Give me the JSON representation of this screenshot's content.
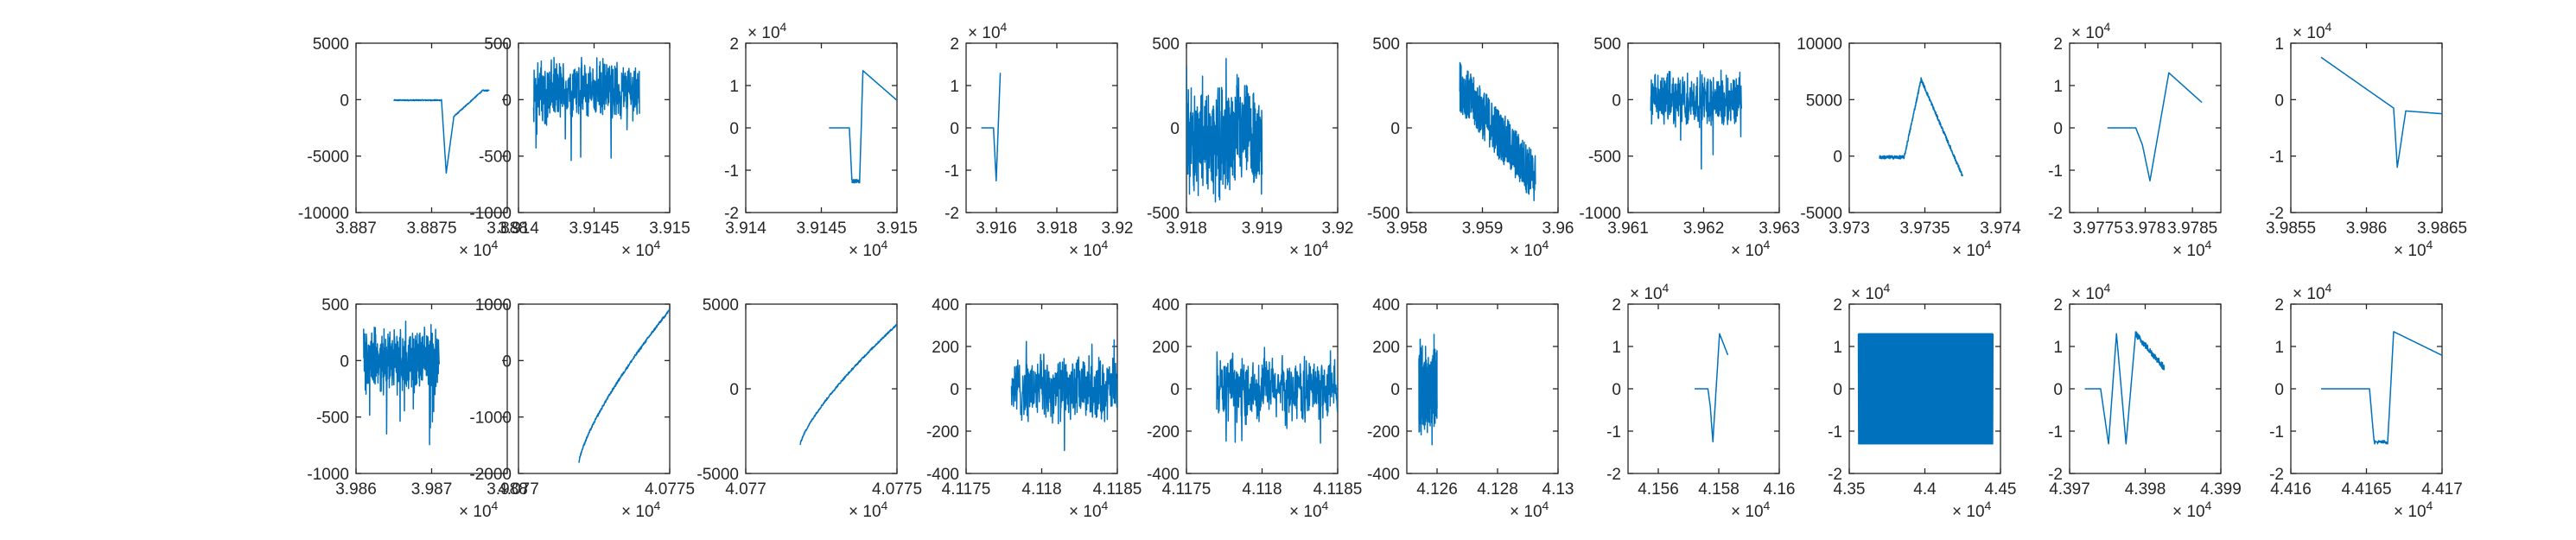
{
  "figure": {
    "background": "#ffffff",
    "line_color": "#0072BD",
    "axis_color": "#262626",
    "rows": 2,
    "cols": 10
  },
  "chart_data": [
    {
      "type": "line",
      "xlim": [
        38870,
        38880
      ],
      "ylim": [
        -10000,
        5000
      ],
      "xticks": [
        38870,
        38875,
        38880
      ],
      "xtick_labels": [
        "3.887",
        "3.8875",
        "3.888"
      ],
      "x_exponent": "× 10^4",
      "yticks": [
        -10000,
        -5000,
        0,
        5000
      ],
      "ytick_labels": [
        "-10000",
        "-5000",
        "0",
        "5000"
      ],
      "y_exponent": "",
      "series": [
        {
          "shape": "dip_spike",
          "x_range": [
            38872.5,
            38878.8
          ],
          "y_range": [
            -6500,
            800
          ],
          "event_x": 0.55
        }
      ]
    },
    {
      "type": "line",
      "xlim": [
        39140,
        39150
      ],
      "ylim": [
        -1000,
        500
      ],
      "xticks": [
        39140,
        39145,
        39150
      ],
      "xtick_labels": [
        "3.914",
        "3.9145",
        "3.915"
      ],
      "x_exponent": "× 10^4",
      "yticks": [
        -1000,
        -500,
        0,
        500
      ],
      "ytick_labels": [
        "-1000",
        "-500",
        "0",
        "500"
      ],
      "y_exponent": "",
      "series": [
        {
          "shape": "noise",
          "x_range": [
            39141,
            39148
          ],
          "y_range": [
            -550,
            350
          ],
          "center": 80,
          "amp": 200
        }
      ]
    },
    {
      "type": "line",
      "xlim": [
        39140,
        39150
      ],
      "ylim": [
        -20000,
        20000
      ],
      "xticks": [
        39140,
        39145,
        39150
      ],
      "xtick_labels": [
        "3.914",
        "3.9145",
        "3.915"
      ],
      "x_exponent": "× 10^4",
      "yticks": [
        -20000,
        -10000,
        0,
        10000,
        20000
      ],
      "ytick_labels": [
        "-2",
        "-1",
        "0",
        "1",
        "2"
      ],
      "y_exponent": "× 10^4",
      "series": [
        {
          "shape": "square_pulse",
          "x_range": [
            39145.5,
            39150
          ],
          "y_range": [
            -13000,
            13500
          ],
          "event_x": 0.3
        }
      ]
    },
    {
      "type": "line",
      "xlim": [
        39150,
        39200
      ],
      "ylim": [
        -20000,
        20000
      ],
      "xticks": [
        39160,
        39180,
        39200
      ],
      "xtick_labels": [
        "3.916",
        "3.918",
        "3.92"
      ],
      "x_exponent": "× 10^4",
      "yticks": [
        -20000,
        -10000,
        0,
        10000,
        20000
      ],
      "ytick_labels": [
        "-2",
        "-1",
        "0",
        "1",
        "2"
      ],
      "y_exponent": "× 10^4",
      "series": [
        {
          "shape": "narrow_swing",
          "x_range": [
            39155,
            39164
          ],
          "y_range": [
            -12500,
            13000
          ],
          "event_x": 0.55
        }
      ]
    },
    {
      "type": "line",
      "xlim": [
        39180,
        39200
      ],
      "ylim": [
        -500,
        500
      ],
      "xticks": [
        39180,
        39190,
        39200
      ],
      "xtick_labels": [
        "3.918",
        "3.919",
        "3.92"
      ],
      "x_exponent": "× 10^4",
      "yticks": [
        -500,
        0,
        500
      ],
      "ytick_labels": [
        "-500",
        "0",
        "500"
      ],
      "y_exponent": "",
      "series": [
        {
          "shape": "noise",
          "x_range": [
            39180,
            39190
          ],
          "y_range": [
            -480,
            420
          ],
          "center": -60,
          "amp": 220
        }
      ]
    },
    {
      "type": "line",
      "xlim": [
        39580,
        39600
      ],
      "ylim": [
        -500,
        500
      ],
      "xticks": [
        39580,
        39590,
        39600
      ],
      "xtick_labels": [
        "3.958",
        "3.959",
        "3.96"
      ],
      "x_exponent": "× 10^4",
      "yticks": [
        -500,
        0,
        500
      ],
      "ytick_labels": [
        "-500",
        "0",
        "500"
      ],
      "y_exponent": "",
      "series": [
        {
          "shape": "noisy_descent",
          "x_range": [
            39587,
            39597
          ],
          "y_range": [
            -500,
            480
          ],
          "start": 250,
          "end": -300,
          "amp": 150
        }
      ]
    },
    {
      "type": "line",
      "xlim": [
        39610,
        39630
      ],
      "ylim": [
        -1000,
        500
      ],
      "xticks": [
        39610,
        39620,
        39630
      ],
      "xtick_labels": [
        "3.961",
        "3.962",
        "3.963"
      ],
      "x_exponent": "× 10^4",
      "yticks": [
        -1000,
        -500,
        0,
        500
      ],
      "ytick_labels": [
        "-1000",
        "-500",
        "0",
        "500"
      ],
      "y_exponent": "",
      "series": [
        {
          "shape": "noise",
          "x_range": [
            39613,
            39625
          ],
          "y_range": [
            -650,
            280
          ],
          "center": 0,
          "amp": 170
        }
      ]
    },
    {
      "type": "line",
      "xlim": [
        39730,
        39740
      ],
      "ylim": [
        -5000,
        10000
      ],
      "xticks": [
        39730,
        39735,
        39740
      ],
      "xtick_labels": [
        "3.973",
        "3.9735",
        "3.974"
      ],
      "x_exponent": "× 10^4",
      "yticks": [
        -5000,
        0,
        5000,
        10000
      ],
      "ytick_labels": [
        "-5000",
        "0",
        "5000",
        "10000"
      ],
      "y_exponent": "",
      "series": [
        {
          "shape": "triangle_peak",
          "x_range": [
            39732,
            39737.5
          ],
          "y_range": [
            -1800,
            6800
          ],
          "event_x": 0.5
        }
      ]
    },
    {
      "type": "line",
      "xlim": [
        39772,
        39788
      ],
      "ylim": [
        -20000,
        20000
      ],
      "xticks": [
        39775,
        39780,
        39785
      ],
      "xtick_labels": [
        "3.9775",
        "3.978",
        "3.9785"
      ],
      "x_exponent": "× 10^4",
      "yticks": [
        -20000,
        -10000,
        0,
        10000,
        20000
      ],
      "ytick_labels": [
        "-2",
        "-1",
        "0",
        "1",
        "2"
      ],
      "y_exponent": "× 10^4",
      "series": [
        {
          "shape": "step_swing",
          "x_range": [
            39776,
            39786
          ],
          "y_range": [
            -12500,
            13000
          ],
          "event_x": 0.45
        }
      ]
    },
    {
      "type": "line",
      "xlim": [
        39855,
        39865
      ],
      "ylim": [
        -20000,
        10000
      ],
      "xticks": [
        39855,
        39860,
        39865
      ],
      "xtick_labels": [
        "3.9855",
        "3.986",
        "3.9865"
      ],
      "x_exponent": "× 10^4",
      "yticks": [
        -20000,
        -10000,
        0,
        10000
      ],
      "ytick_labels": [
        "-2",
        "-1",
        "0",
        "1"
      ],
      "y_exponent": "× 10^4",
      "series": [
        {
          "shape": "decay_dip",
          "x_range": [
            39857,
            39865
          ],
          "y_range": [
            -12000,
            7500
          ],
          "event_x": 0.6
        }
      ]
    },
    {
      "type": "line",
      "xlim": [
        39860,
        39880
      ],
      "ylim": [
        -1000,
        500
      ],
      "xticks": [
        39860,
        39870,
        39880
      ],
      "xtick_labels": [
        "3.986",
        "3.987",
        "3.988"
      ],
      "x_exponent": "× 10^4",
      "yticks": [
        -1000,
        -500,
        0,
        500
      ],
      "ytick_labels": [
        "-1000",
        "-500",
        "0",
        "500"
      ],
      "y_exponent": "",
      "series": [
        {
          "shape": "noise",
          "x_range": [
            39861,
            39871
          ],
          "y_range": [
            -820,
            400
          ],
          "center": 0,
          "amp": 200
        }
      ]
    },
    {
      "type": "line",
      "xlim": [
        40770,
        40775
      ],
      "ylim": [
        -2000,
        1000
      ],
      "xticks": [
        40770,
        40775
      ],
      "xtick_labels": [
        "4.077",
        "4.0775"
      ],
      "x_exponent": "× 10^4",
      "yticks": [
        -2000,
        -1000,
        0,
        1000
      ],
      "ytick_labels": [
        "-2000",
        "-1000",
        "0",
        "1000"
      ],
      "y_exponent": "",
      "series": [
        {
          "shape": "rising_curve",
          "x_range": [
            40772,
            40775
          ],
          "y_range": [
            -1800,
            900
          ]
        }
      ]
    },
    {
      "type": "line",
      "xlim": [
        40770,
        40775
      ],
      "ylim": [
        -5000,
        5000
      ],
      "xticks": [
        40770,
        40775
      ],
      "xtick_labels": [
        "4.077",
        "4.0775"
      ],
      "x_exponent": "× 10^4",
      "yticks": [
        -5000,
        0,
        5000
      ],
      "ytick_labels": [
        "-5000",
        "0",
        "5000"
      ],
      "y_exponent": "",
      "series": [
        {
          "shape": "rising_curve",
          "x_range": [
            40771.8,
            40775
          ],
          "y_range": [
            -3300,
            3800
          ]
        }
      ]
    },
    {
      "type": "line",
      "xlim": [
        41175,
        41185
      ],
      "ylim": [
        -400,
        400
      ],
      "xticks": [
        41175,
        41180,
        41185
      ],
      "xtick_labels": [
        "4.1175",
        "4.118",
        "4.1185"
      ],
      "x_exponent": "× 10^4",
      "yticks": [
        -400,
        -200,
        0,
        200,
        400
      ],
      "ytick_labels": [
        "-400",
        "-200",
        "0",
        "200",
        "400"
      ],
      "y_exponent": "",
      "series": [
        {
          "shape": "noise",
          "x_range": [
            41178,
            41185
          ],
          "y_range": [
            -320,
            240
          ],
          "center": 0,
          "amp": 110
        }
      ]
    },
    {
      "type": "line",
      "xlim": [
        41175,
        41185
      ],
      "ylim": [
        -400,
        400
      ],
      "xticks": [
        41175,
        41180,
        41185
      ],
      "xtick_labels": [
        "4.1175",
        "4.118",
        "4.1185"
      ],
      "x_exponent": "× 10^4",
      "yticks": [
        -400,
        -200,
        0,
        200,
        400
      ],
      "ytick_labels": [
        "-400",
        "-200",
        "0",
        "200",
        "400"
      ],
      "y_exponent": "",
      "series": [
        {
          "shape": "noise",
          "x_range": [
            41177,
            41185
          ],
          "y_range": [
            -320,
            230
          ],
          "center": 0,
          "amp": 110
        }
      ]
    },
    {
      "type": "line",
      "xlim": [
        41250,
        41300
      ],
      "ylim": [
        -400,
        400
      ],
      "xticks": [
        41260,
        41280,
        41300
      ],
      "xtick_labels": [
        "4.126",
        "4.128",
        "4.13"
      ],
      "x_exponent": "× 10^4",
      "yticks": [
        -400,
        -200,
        0,
        200,
        400
      ],
      "ytick_labels": [
        "-400",
        "-200",
        "0",
        "200",
        "400"
      ],
      "y_exponent": "",
      "series": [
        {
          "shape": "noise",
          "x_range": [
            41254,
            41260
          ],
          "y_range": [
            -280,
            280
          ],
          "center": 0,
          "amp": 140
        }
      ]
    },
    {
      "type": "line",
      "xlim": [
        41550,
        41600
      ],
      "ylim": [
        -20000,
        20000
      ],
      "xticks": [
        41560,
        41580,
        41600
      ],
      "xtick_labels": [
        "4.156",
        "4.158",
        "4.16"
      ],
      "x_exponent": "× 10^4",
      "yticks": [
        -20000,
        -10000,
        0,
        10000,
        20000
      ],
      "ytick_labels": [
        "-2",
        "-1",
        "0",
        "1",
        "2"
      ],
      "y_exponent": "× 10^4",
      "series": [
        {
          "shape": "step_swing",
          "x_range": [
            41572,
            41583
          ],
          "y_range": [
            -12500,
            13000
          ],
          "event_x": 0.55
        }
      ]
    },
    {
      "type": "line",
      "xlim": [
        43500,
        44500
      ],
      "ylim": [
        -20000,
        20000
      ],
      "xticks": [
        43500,
        44000,
        44500
      ],
      "xtick_labels": [
        "4.35",
        "4.4",
        "4.45"
      ],
      "x_exponent": "× 10^4",
      "yticks": [
        -20000,
        -10000,
        0,
        10000,
        20000
      ],
      "ytick_labels": [
        "-2",
        "-1",
        "0",
        "1",
        "2"
      ],
      "y_exponent": "× 10^4",
      "series": [
        {
          "shape": "dense_square",
          "x_range": [
            43560,
            44450
          ],
          "y_range": [
            -13000,
            13000
          ]
        }
      ]
    },
    {
      "type": "line",
      "xlim": [
        43970,
        43990
      ],
      "ylim": [
        -20000,
        20000
      ],
      "xticks": [
        43970,
        43980,
        43990
      ],
      "xtick_labels": [
        "4.397",
        "4.398",
        "4.399"
      ],
      "x_exponent": "× 10^4",
      "yticks": [
        -20000,
        -10000,
        0,
        10000,
        20000
      ],
      "ytick_labels": [
        "-2",
        "-1",
        "0",
        "1",
        "2"
      ],
      "y_exponent": "× 10^4",
      "series": [
        {
          "shape": "double_swing",
          "x_range": [
            43972,
            43982.5
          ],
          "y_range": [
            -13000,
            13000
          ],
          "event_x": 0.4
        }
      ]
    },
    {
      "type": "line",
      "xlim": [
        44160,
        44170
      ],
      "ylim": [
        -20000,
        20000
      ],
      "xticks": [
        44160,
        44165,
        44170
      ],
      "xtick_labels": [
        "4.416",
        "4.4165",
        "4.417"
      ],
      "x_exponent": "× 10^4",
      "yticks": [
        -20000,
        -10000,
        0,
        10000,
        20000
      ],
      "ytick_labels": [
        "-2",
        "-1",
        "0",
        "1",
        "2"
      ],
      "y_exponent": "× 10^4",
      "series": [
        {
          "shape": "square_pulse",
          "x_range": [
            44162,
            44170
          ],
          "y_range": [
            -13000,
            13500
          ],
          "event_x": 0.4
        }
      ]
    }
  ]
}
